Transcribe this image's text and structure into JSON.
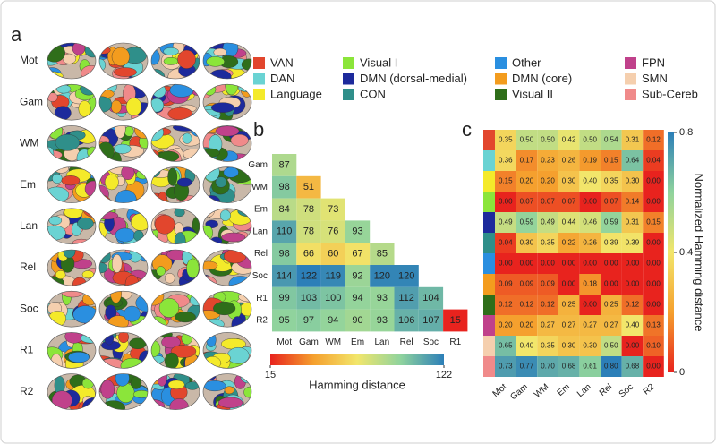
{
  "panel_labels": [
    "a",
    "b",
    "c"
  ],
  "brain_rows": [
    "Mot",
    "Gam",
    "WM",
    "Em",
    "Lan",
    "Rel",
    "Soc",
    "R1",
    "R2"
  ],
  "legend": [
    {
      "name": "VAN",
      "color": "#e2462d"
    },
    {
      "name": "DAN",
      "color": "#6ad3d3"
    },
    {
      "name": "Language",
      "color": "#f4ea2a"
    },
    {
      "name": "Visual I",
      "color": "#8be53a"
    },
    {
      "name": "DMN (dorsal-medial)",
      "color": "#1d2a9c"
    },
    {
      "name": "CON",
      "color": "#2f8f8a"
    },
    {
      "name": "Other",
      "color": "#2a8fe0"
    },
    {
      "name": "DMN (core)",
      "color": "#f39c1e"
    },
    {
      "name": "Visual II",
      "color": "#2f6e1a"
    },
    {
      "name": "FPN",
      "color": "#c0418b"
    },
    {
      "name": "SMN",
      "color": "#f5cfae"
    },
    {
      "name": "Sub-Cereb",
      "color": "#f08a8a"
    }
  ],
  "chart_data": [
    {
      "type": "heatmap",
      "x_categories": [
        "Mot",
        "Gam",
        "WM",
        "Em",
        "Lan",
        "Rel",
        "Soc",
        "R1"
      ],
      "y_categories": [
        "Gam",
        "WM",
        "Em",
        "Lan",
        "Rel",
        "Soc",
        "R1",
        "R2"
      ],
      "values": [
        [
          87,
          null,
          null,
          null,
          null,
          null,
          null,
          null
        ],
        [
          98,
          51,
          null,
          null,
          null,
          null,
          null,
          null
        ],
        [
          84,
          78,
          73,
          null,
          null,
          null,
          null,
          null
        ],
        [
          110,
          78,
          76,
          93,
          null,
          null,
          null,
          null
        ],
        [
          98,
          66,
          60,
          67,
          85,
          null,
          null,
          null
        ],
        [
          114,
          122,
          119,
          92,
          120,
          120,
          null,
          null
        ],
        [
          99,
          103,
          100,
          94,
          93,
          112,
          104,
          null
        ],
        [
          95,
          97,
          94,
          90,
          93,
          106,
          107,
          15
        ]
      ],
      "colormap": [
        "#e8231e",
        "#f5a02e",
        "#f2e66b",
        "#8fd39d",
        "#2c7fb8"
      ],
      "colorbar": {
        "lim": [
          15,
          122
        ],
        "ticks": [
          15,
          122
        ],
        "label": "Hamming distance"
      }
    },
    {
      "type": "heatmap",
      "x_categories": [
        "Mot",
        "Gam",
        "WM",
        "Em",
        "Lan",
        "Rel",
        "Soc",
        "R2"
      ],
      "values": [
        [
          0.35,
          0.5,
          0.5,
          0.42,
          0.5,
          0.54,
          0.31,
          0.12
        ],
        [
          0.36,
          0.17,
          0.23,
          0.26,
          0.19,
          0.15,
          0.64,
          0.04
        ],
        [
          0.15,
          0.2,
          0.2,
          0.3,
          0.4,
          0.35,
          0.3,
          0
        ],
        [
          0,
          0.07,
          0.07,
          0.07,
          0,
          0.07,
          0.14,
          0
        ],
        [
          0.49,
          0.59,
          0.49,
          0.44,
          0.46,
          0.59,
          0.31,
          0.15
        ],
        [
          0.04,
          0.3,
          0.35,
          0.22,
          0.26,
          0.39,
          0.39,
          0
        ],
        [
          0,
          0,
          0,
          0,
          0,
          0,
          0,
          0
        ],
        [
          0.09,
          0.09,
          0.09,
          0,
          0.18,
          0,
          0,
          0
        ],
        [
          0.12,
          0.12,
          0.12,
          0.25,
          0,
          0.25,
          0.12,
          0
        ],
        [
          0.2,
          0.2,
          0.27,
          0.27,
          0.27,
          0.27,
          0.4,
          0.13
        ],
        [
          0.65,
          0.4,
          0.35,
          0.3,
          0.3,
          0.5,
          0,
          0.1
        ],
        [
          0.73,
          0.77,
          0.7,
          0.68,
          0.61,
          0.8,
          0.68,
          0
        ]
      ],
      "value_labels": [
        [
          "0.35",
          "0.50",
          "0.50",
          "0.42",
          "0.50",
          "0.54",
          "0.31",
          "0.12"
        ],
        [
          "0.36",
          "0.17",
          "0.23",
          "0.26",
          "0.19",
          "0.15",
          "0.64",
          "0.04"
        ],
        [
          "0.15",
          "0.20",
          "0.20",
          "0.30",
          "0.40",
          "0.35",
          "0.30",
          "0.00"
        ],
        [
          "0.00",
          "0.07",
          "0.07",
          "0.07",
          "0.00",
          "0.07",
          "0.14",
          "0.00"
        ],
        [
          "0.49",
          "0.59",
          "0.49",
          "0.44",
          "0.46",
          "0.59",
          "0.31",
          "0.15"
        ],
        [
          "0.04",
          "0.30",
          "0.35",
          "0.22",
          "0.26",
          "0.39",
          "0.39",
          "0.00"
        ],
        [
          "0.00",
          "0.00",
          "0.00",
          "0.00",
          "0.00",
          "0.00",
          "0.00",
          "0.00"
        ],
        [
          "0.09",
          "0.09",
          "0.09",
          "0.00",
          "0.18",
          "0.00",
          "0.00",
          "0.00"
        ],
        [
          "0.12",
          "0.12",
          "0.12",
          "0.25",
          "0.00",
          "0.25",
          "0.12",
          "0.00"
        ],
        [
          "0.20",
          "0.20",
          "0.27",
          "0.27",
          "0.27",
          "0.27",
          "0.40",
          "0.13"
        ],
        [
          "0.65",
          "0.40",
          "0.35",
          "0.30",
          "0.30",
          "0.50",
          "0.00",
          "0.10"
        ],
        [
          "0.73",
          "0.77",
          "0.70",
          "0.68",
          "0.61",
          "0.80",
          "0.68",
          "0.00"
        ]
      ],
      "colormap": [
        "#e8231e",
        "#f5a02e",
        "#f2e66b",
        "#8fd39d",
        "#2c7fb8"
      ],
      "colorbar": {
        "lim": [
          0,
          0.8
        ],
        "ticks": [
          0,
          0.4,
          0.8
        ],
        "label": "Normalized Hamming distance"
      }
    }
  ]
}
